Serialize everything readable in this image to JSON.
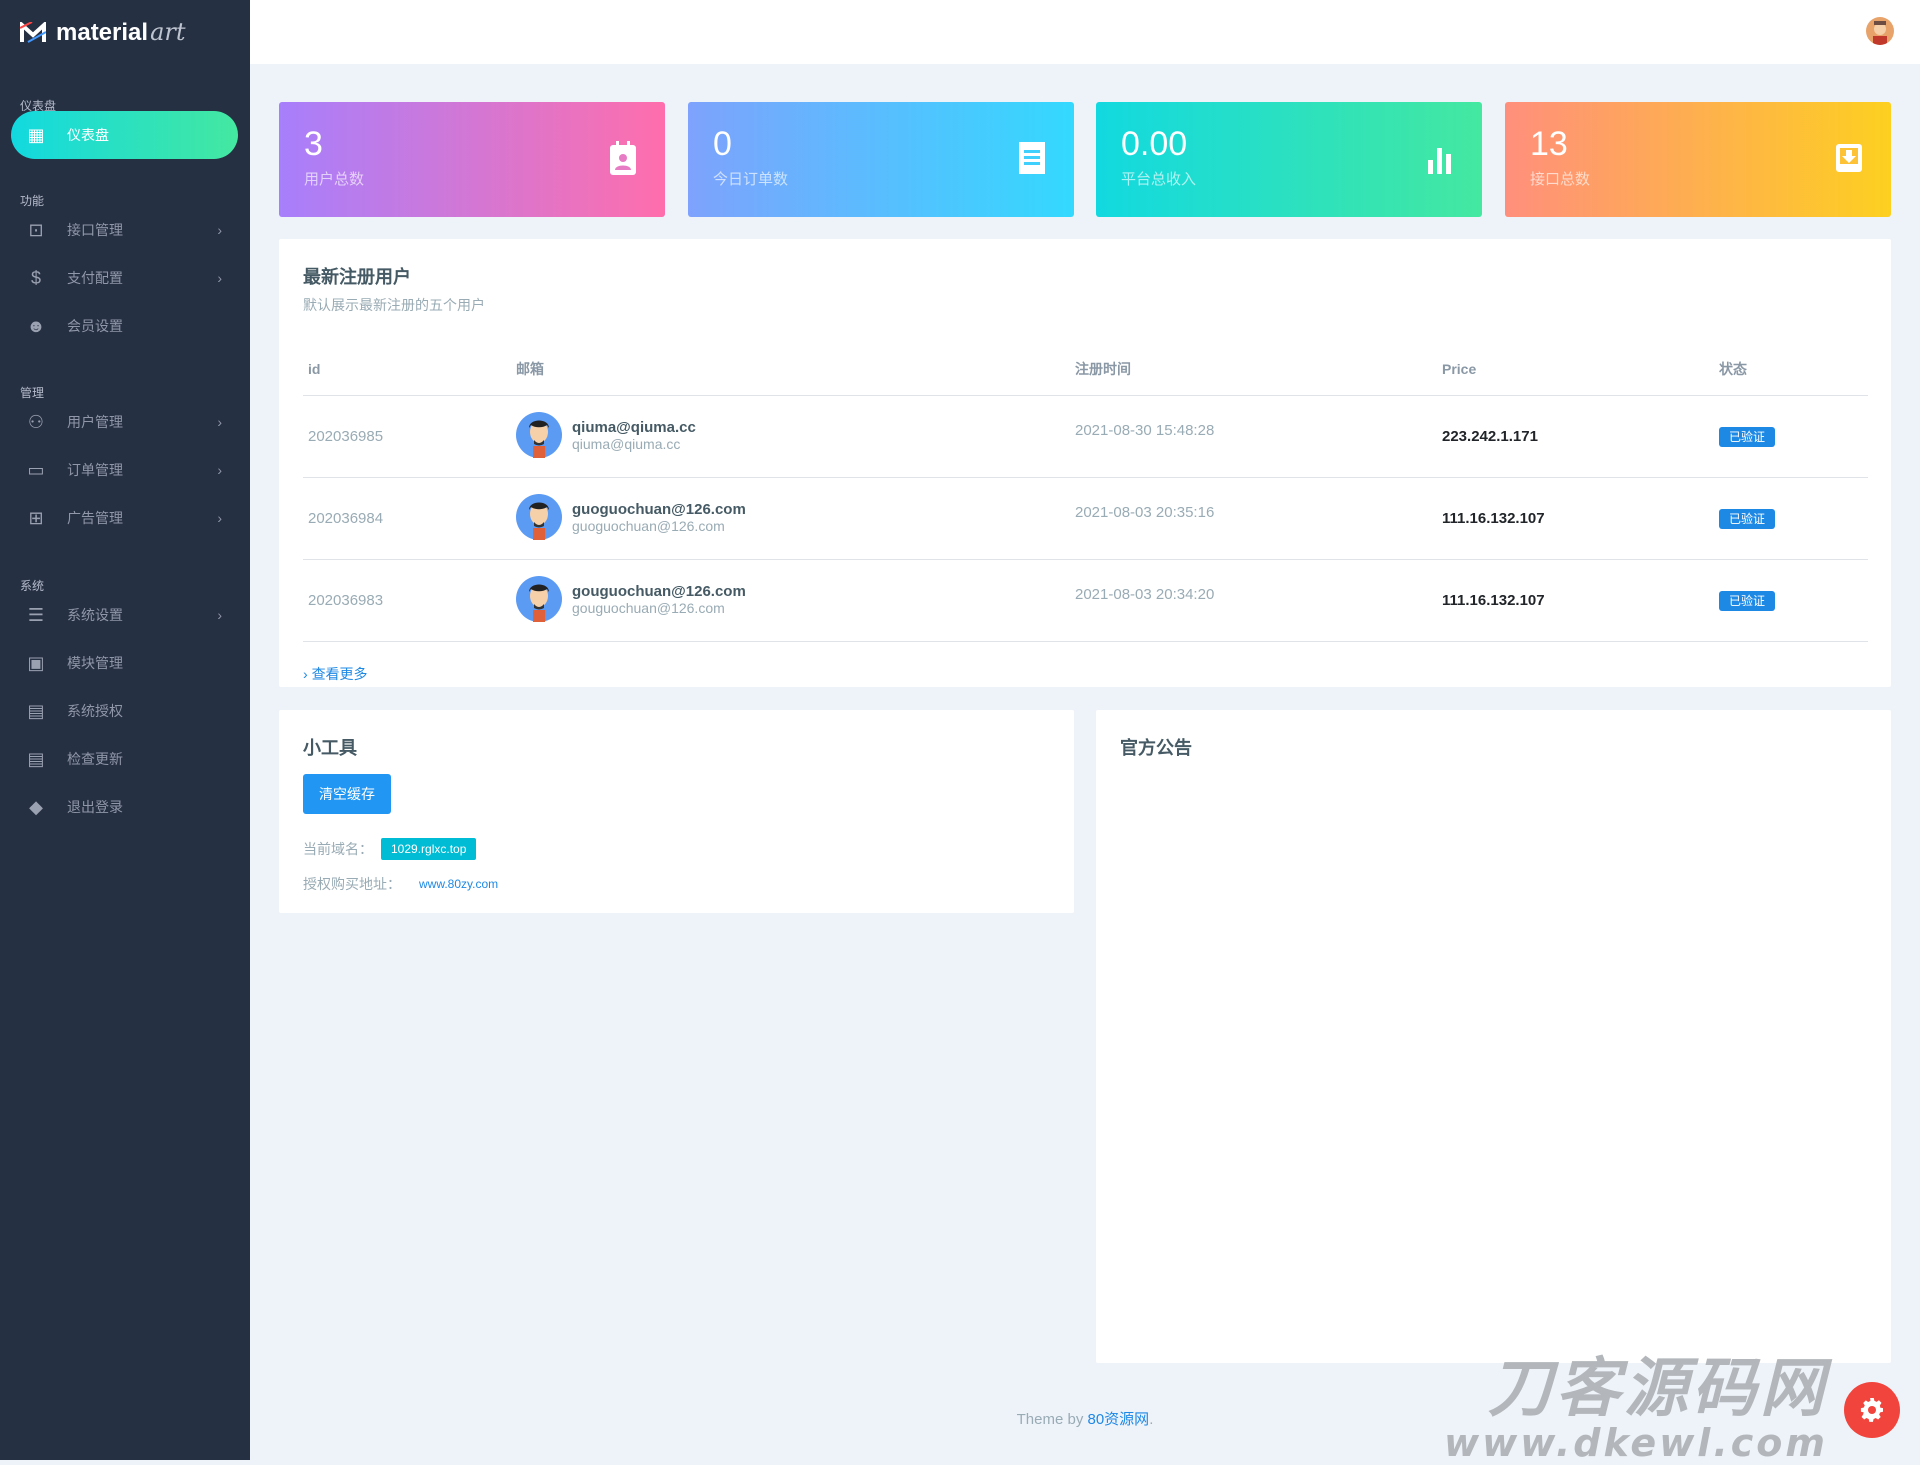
{
  "brand": {
    "name": "material",
    "suffix": "art"
  },
  "sidebar": {
    "sections": [
      "仪表盘",
      "功能",
      "管理",
      "系统"
    ],
    "items": [
      {
        "label": "仪表盘",
        "icon": "dashboard-icon",
        "active": true
      },
      {
        "label": "接口管理",
        "icon": "inbox-icon",
        "chevron": true
      },
      {
        "label": "支付配置",
        "icon": "dollar-icon",
        "chevron": true
      },
      {
        "label": "会员设置",
        "icon": "member-icon"
      },
      {
        "label": "用户管理",
        "icon": "users-icon",
        "chevron": true
      },
      {
        "label": "订单管理",
        "icon": "credit-card-icon",
        "chevron": true
      },
      {
        "label": "广告管理",
        "icon": "gamepad-icon",
        "chevron": true
      },
      {
        "label": "系统设置",
        "icon": "receipt-icon",
        "chevron": true
      },
      {
        "label": "模块管理",
        "icon": "briefcase-icon"
      },
      {
        "label": "系统授权",
        "icon": "grid-icon"
      },
      {
        "label": "检查更新",
        "icon": "grid-icon"
      },
      {
        "label": "退出登录",
        "icon": "direction-icon"
      }
    ]
  },
  "stats": [
    {
      "value": "3",
      "label": "用户总数",
      "icon": "calendar-user-icon",
      "colors": [
        "#a77ffc",
        "#ff6eac"
      ]
    },
    {
      "value": "0",
      "label": "今日订单数",
      "icon": "receipt-icon",
      "colors": [
        "#7ea2fd",
        "#33d9fe"
      ]
    },
    {
      "value": "0.00",
      "label": "平台总收入",
      "icon": "bar-chart-icon",
      "colors": [
        "#12d9e0",
        "#44e8a0"
      ]
    },
    {
      "value": "13",
      "label": "接口总数",
      "icon": "inbox-icon",
      "colors": [
        "#ff8f7c",
        "#fdd020"
      ]
    }
  ],
  "users_card": {
    "title": "最新注册用户",
    "subtitle": "默认展示最新注册的五个用户",
    "columns": [
      "id",
      "邮箱",
      "注册时间",
      "Price",
      "状态"
    ],
    "rows": [
      {
        "id": "202036985",
        "email": "qiuma@qiuma.cc",
        "email2": "qiuma@qiuma.cc",
        "time": "2021-08-30 15:48:28",
        "price": "223.242.1.171",
        "status": "已验证"
      },
      {
        "id": "202036984",
        "email": "guoguochuan@126.com",
        "email2": "guoguochuan@126.com",
        "time": "2021-08-03 20:35:16",
        "price": "111.16.132.107",
        "status": "已验证"
      },
      {
        "id": "202036983",
        "email": "gouguochuan@126.com",
        "email2": "gouguochuan@126.com",
        "time": "2021-08-03 20:34:20",
        "price": "111.16.132.107",
        "status": "已验证"
      }
    ],
    "more": "查看更多"
  },
  "tools": {
    "title": "小工具",
    "clear_cache": "清空缓存",
    "domain_label": "当前域名：",
    "domain": "1029.rglxc.top",
    "buy_label": "授权购买地址：",
    "buy_link": "www.80zy.com"
  },
  "notice": {
    "title": "官方公告"
  },
  "footer": {
    "prefix": "Theme by ",
    "link": "80资源网",
    "suffix": "."
  },
  "watermark": {
    "line1": "刀客源码网",
    "line2": "www.dkewl.com"
  },
  "colors": {
    "sidebar": "#263043",
    "accent": "#1e88e5",
    "info": "#00bcd4",
    "fab": "#f2362c"
  }
}
